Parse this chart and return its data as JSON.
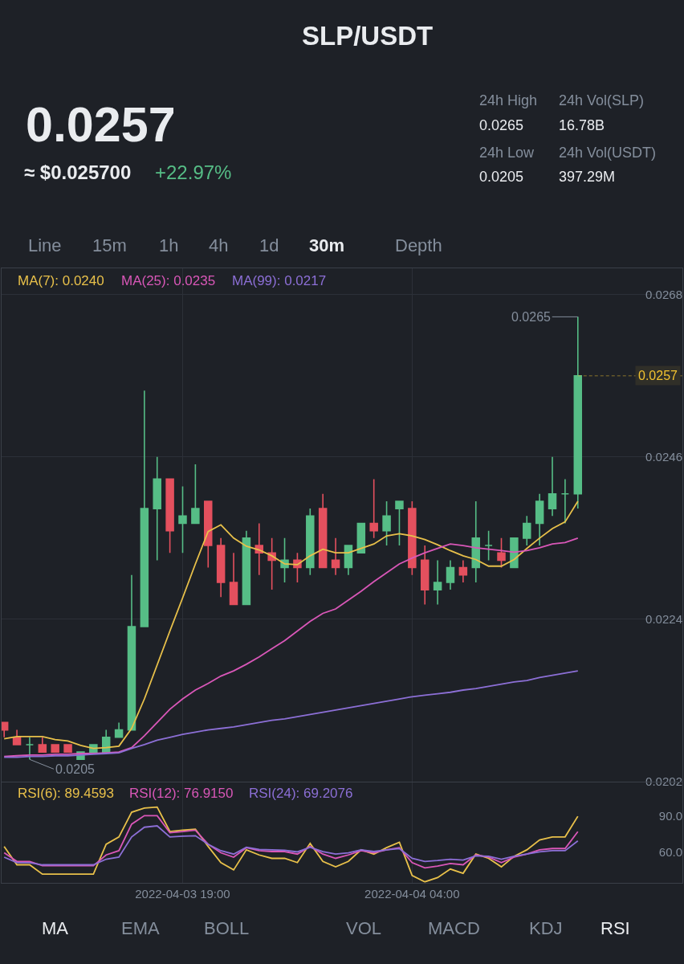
{
  "chart_data": [
    {
      "type": "other",
      "title": "SLP/USDT",
      "annotations": [
        "0.0257",
        "≈ $0.025700",
        "+22.97%",
        "24h High",
        "0.0265",
        "24h Low",
        "0.0205",
        "24h Vol(SLP)",
        "16.78B",
        "24h Vol(USDT)",
        "397.29M",
        "Line",
        "15m",
        "1h",
        "4h",
        "1d",
        "30m",
        "Depth"
      ]
    },
    {
      "type": "candlestick",
      "x": [
        "2022-04-03T12:00",
        "2022-04-03T12:30",
        "2022-04-03T13:00",
        "2022-04-03T13:30",
        "2022-04-03T14:00",
        "2022-04-03T14:30",
        "2022-04-03T15:00",
        "2022-04-03T15:30",
        "2022-04-03T16:00",
        "2022-04-03T16:30",
        "2022-04-03T17:00",
        "2022-04-03T17:30",
        "2022-04-03T18:00",
        "2022-04-03T18:30",
        "2022-04-03T19:00",
        "2022-04-03T19:30",
        "2022-04-03T20:00",
        "2022-04-03T20:30",
        "2022-04-03T21:00",
        "2022-04-03T21:30",
        "2022-04-03T22:00",
        "2022-04-03T22:30",
        "2022-04-03T23:00",
        "2022-04-03T23:30",
        "2022-04-04T00:00",
        "2022-04-04T00:30",
        "2022-04-04T01:00",
        "2022-04-04T01:30",
        "2022-04-04T02:00",
        "2022-04-04T02:30",
        "2022-04-04T03:00",
        "2022-04-04T03:30",
        "2022-04-04T04:00",
        "2022-04-04T04:30",
        "2022-04-04T05:00",
        "2022-04-04T05:30",
        "2022-04-04T06:00",
        "2022-04-04T06:30",
        "2022-04-04T07:00",
        "2022-04-04T07:30",
        "2022-04-04T08:00",
        "2022-04-04T08:30",
        "2022-04-04T09:00",
        "2022-04-04T09:30",
        "2022-04-04T10:00",
        "2022-04-04T10:30"
      ],
      "ohlc": [
        [
          0.021,
          0.021,
          0.0208,
          0.0209
        ],
        [
          0.0208,
          0.0209,
          0.0207,
          0.0207
        ],
        [
          0.0207,
          0.0208,
          0.0205,
          0.0207
        ],
        [
          0.0207,
          0.0208,
          0.0206,
          0.0206
        ],
        [
          0.0207,
          0.0207,
          0.0206,
          0.0206
        ],
        [
          0.0207,
          0.0207,
          0.0206,
          0.0206
        ],
        [
          0.0205,
          0.0206,
          0.0205,
          0.0206
        ],
        [
          0.0206,
          0.0207,
          0.0206,
          0.0207
        ],
        [
          0.0206,
          0.0209,
          0.0206,
          0.0208
        ],
        [
          0.0208,
          0.021,
          0.0208,
          0.0209
        ],
        [
          0.0209,
          0.023,
          0.0209,
          0.0223
        ],
        [
          0.0223,
          0.0255,
          0.0223,
          0.0239
        ],
        [
          0.0239,
          0.0246,
          0.0232,
          0.0243
        ],
        [
          0.0243,
          0.0243,
          0.0233,
          0.0236
        ],
        [
          0.0237,
          0.0242,
          0.0233,
          0.0238
        ],
        [
          0.0237,
          0.0245,
          0.0237,
          0.0239
        ],
        [
          0.024,
          0.024,
          0.0231,
          0.0234
        ],
        [
          0.0234,
          0.0235,
          0.0227,
          0.0229
        ],
        [
          0.0229,
          0.0233,
          0.0226,
          0.0226
        ],
        [
          0.0226,
          0.0236,
          0.0226,
          0.0235
        ],
        [
          0.0234,
          0.0237,
          0.023,
          0.0233
        ],
        [
          0.0233,
          0.0235,
          0.0228,
          0.0232
        ],
        [
          0.0231,
          0.0235,
          0.0229,
          0.0232
        ],
        [
          0.0232,
          0.0233,
          0.0229,
          0.0231
        ],
        [
          0.0231,
          0.0239,
          0.023,
          0.0238
        ],
        [
          0.0239,
          0.0241,
          0.0231,
          0.0231
        ],
        [
          0.0232,
          0.0235,
          0.023,
          0.0231
        ],
        [
          0.0231,
          0.0234,
          0.023,
          0.0234
        ],
        [
          0.0233,
          0.0237,
          0.0233,
          0.0237
        ],
        [
          0.0237,
          0.0243,
          0.0235,
          0.0236
        ],
        [
          0.0236,
          0.024,
          0.0234,
          0.0238
        ],
        [
          0.0239,
          0.024,
          0.0234,
          0.024
        ],
        [
          0.0239,
          0.024,
          0.023,
          0.0231
        ],
        [
          0.0232,
          0.0234,
          0.0226,
          0.0228
        ],
        [
          0.0228,
          0.0232,
          0.0226,
          0.0229
        ],
        [
          0.0229,
          0.0232,
          0.0228,
          0.0231
        ],
        [
          0.0231,
          0.0232,
          0.0229,
          0.023
        ],
        [
          0.0231,
          0.024,
          0.0229,
          0.0235
        ],
        [
          0.0234,
          0.0236,
          0.0232,
          0.0234
        ],
        [
          0.0233,
          0.0235,
          0.0231,
          0.0232
        ],
        [
          0.0231,
          0.0235,
          0.0231,
          0.0235
        ],
        [
          0.0235,
          0.0238,
          0.0234,
          0.0237
        ],
        [
          0.0237,
          0.0241,
          0.0234,
          0.024
        ],
        [
          0.0239,
          0.0246,
          0.0238,
          0.0241
        ],
        [
          0.0241,
          0.0243,
          0.0237,
          0.0241
        ],
        [
          0.0241,
          0.0265,
          0.0239,
          0.0257
        ]
      ],
      "colors": [
        "#e4505e",
        "#e4505e",
        "#56bd86",
        "#e4505e",
        "#e4505e",
        "#e4505e",
        "#56bd86",
        "#56bd86",
        "#56bd86",
        "#56bd86",
        "#56bd86",
        "#56bd86",
        "#56bd86",
        "#e4505e",
        "#56bd86",
        "#56bd86",
        "#e4505e",
        "#e4505e",
        "#e4505e",
        "#56bd86",
        "#e4505e",
        "#e4505e",
        "#56bd86",
        "#e4505e",
        "#56bd86",
        "#e4505e",
        "#e4505e",
        "#56bd86",
        "#56bd86",
        "#e4505e",
        "#56bd86",
        "#56bd86",
        "#e4505e",
        "#e4505e",
        "#56bd86",
        "#56bd86",
        "#e4505e",
        "#56bd86",
        "#56bd86",
        "#e4505e",
        "#56bd86",
        "#56bd86",
        "#56bd86",
        "#56bd86",
        "#56bd86",
        "#56bd86"
      ],
      "series": [
        {
          "type": "line",
          "name": "MA(7): 0.0240",
          "color": "#e8c04a",
          "values": [
            0.02078,
            0.02081,
            0.02081,
            0.02081,
            0.02077,
            0.02075,
            0.02069,
            0.02065,
            0.02066,
            0.02068,
            0.02092,
            0.02132,
            0.02178,
            0.02224,
            0.02269,
            0.02315,
            0.02359,
            0.02368,
            0.0235,
            0.02339,
            0.02334,
            0.02326,
            0.02315,
            0.02314,
            0.02326,
            0.02335,
            0.0233,
            0.0233,
            0.02336,
            0.02342,
            0.02353,
            0.02356,
            0.02353,
            0.02348,
            0.02341,
            0.02333,
            0.02326,
            0.02321,
            0.02312,
            0.02312,
            0.02321,
            0.02336,
            0.0235,
            0.02363,
            0.02372,
            0.024
          ]
        },
        {
          "type": "line",
          "name": "MA(25): 0.0235",
          "color": "#d957b8",
          "values": [
            0.02054,
            0.02055,
            0.02056,
            0.02056,
            0.02057,
            0.02057,
            0.02058,
            0.02058,
            0.02059,
            0.0206,
            0.02066,
            0.02082,
            0.021,
            0.02118,
            0.02132,
            0.02144,
            0.02153,
            0.02163,
            0.0217,
            0.02179,
            0.02189,
            0.022,
            0.02211,
            0.02224,
            0.02237,
            0.02248,
            0.02254,
            0.02266,
            0.02278,
            0.02291,
            0.02303,
            0.02315,
            0.02323,
            0.0233,
            0.02336,
            0.02342,
            0.0234,
            0.02337,
            0.02335,
            0.02333,
            0.02331,
            0.02333,
            0.02337,
            0.02342,
            0.02344,
            0.0235
          ]
        },
        {
          "type": "line",
          "name": "MA(99): 0.0217",
          "color": "#8c6fd6",
          "values": [
            0.02053,
            0.02053,
            0.02054,
            0.02054,
            0.02055,
            0.02055,
            0.02056,
            0.02057,
            0.02058,
            0.02059,
            0.02065,
            0.0207,
            0.02076,
            0.0208,
            0.02084,
            0.02087,
            0.0209,
            0.02092,
            0.02094,
            0.02097,
            0.021,
            0.02103,
            0.02105,
            0.02108,
            0.02111,
            0.02114,
            0.02117,
            0.0212,
            0.02123,
            0.02126,
            0.02129,
            0.02132,
            0.02135,
            0.02137,
            0.02139,
            0.02141,
            0.02144,
            0.02146,
            0.02149,
            0.02152,
            0.02155,
            0.02157,
            0.02161,
            0.02164,
            0.02167,
            0.0217
          ]
        }
      ],
      "xlim": [
        "2022-04-03T11:54",
        "2022-04-04T14:36"
      ],
      "ylim": [
        0.0202,
        0.02716
      ],
      "xticks": [
        {
          "value": "2022-04-03T19:00",
          "label": null
        },
        {
          "value": "2022-04-04T04:00",
          "label": null
        }
      ],
      "yticks": [
        0.0202,
        0.0224,
        0.0246,
        0.0268
      ],
      "tick_labels": "y",
      "grid": true,
      "legend": "top left",
      "ref_lines": [
        {
          "axis": "y",
          "value": 0.0257,
          "label": "0.0257",
          "color": "#f2c230",
          "line_style": "dashed"
        }
      ],
      "annotations": [
        {
          "text": "0.0265",
          "x": "2022-04-04T10:30",
          "y": 0.0265
        },
        {
          "text": "0.0205",
          "x": "2022-04-03T13:00",
          "y": 0.0205
        }
      ]
    },
    {
      "type": "line",
      "x": [
        "2022-04-03T12:00",
        "2022-04-03T12:30",
        "2022-04-03T13:00",
        "2022-04-03T13:30",
        "2022-04-03T14:00",
        "2022-04-03T14:30",
        "2022-04-03T15:00",
        "2022-04-03T15:30",
        "2022-04-03T16:00",
        "2022-04-03T16:30",
        "2022-04-03T17:00",
        "2022-04-03T17:30",
        "2022-04-03T18:00",
        "2022-04-03T18:30",
        "2022-04-03T19:00",
        "2022-04-03T19:30",
        "2022-04-03T20:00",
        "2022-04-03T20:30",
        "2022-04-03T21:00",
        "2022-04-03T21:30",
        "2022-04-03T22:00",
        "2022-04-03T22:30",
        "2022-04-03T23:00",
        "2022-04-03T23:30",
        "2022-04-04T00:00",
        "2022-04-04T00:30",
        "2022-04-04T01:00",
        "2022-04-04T01:30",
        "2022-04-04T02:00",
        "2022-04-04T02:30",
        "2022-04-04T03:00",
        "2022-04-04T03:30",
        "2022-04-04T04:00",
        "2022-04-04T04:30",
        "2022-04-04T05:00",
        "2022-04-04T05:30",
        "2022-04-04T06:00",
        "2022-04-04T06:30",
        "2022-04-04T07:00",
        "2022-04-04T07:30",
        "2022-04-04T08:00",
        "2022-04-04T08:30",
        "2022-04-04T09:00",
        "2022-04-04T09:30",
        "2022-04-04T10:00",
        "2022-04-04T10:30"
      ],
      "series": [
        {
          "name": "RSI(6): 89.4593",
          "color": "#e8c04a",
          "values": [
            64.7,
            49.6,
            49.6,
            41.9,
            41.9,
            41.9,
            41.9,
            41.9,
            66.5,
            72.5,
            92.8,
            96.3,
            97.1,
            77.0,
            78.1,
            78.8,
            64.7,
            51.4,
            45.4,
            61.9,
            57.7,
            54.9,
            54.9,
            51.4,
            67.2,
            52.4,
            47.9,
            52.4,
            61.9,
            58.4,
            63.7,
            68.2,
            40.8,
            35.6,
            39.1,
            46.1,
            42.6,
            58.4,
            54.9,
            47.9,
            56.6,
            61.9,
            70.0,
            72.5,
            72.5,
            89.5
          ]
        },
        {
          "name": "RSI(12): 76.9150",
          "color": "#d957b8",
          "values": [
            59.5,
            52.4,
            52.4,
            48.9,
            48.9,
            48.9,
            48.9,
            48.9,
            57.7,
            61.2,
            83.0,
            90.0,
            90.0,
            76.0,
            77.0,
            78.1,
            66.5,
            59.5,
            55.9,
            63.7,
            61.2,
            60.5,
            60.5,
            58.4,
            64.7,
            58.4,
            54.9,
            57.7,
            61.2,
            59.5,
            61.9,
            63.7,
            51.4,
            47.1,
            48.6,
            50.7,
            49.6,
            57.7,
            55.9,
            51.4,
            55.9,
            58.4,
            61.9,
            63.0,
            63.0,
            76.9
          ]
        },
        {
          "name": "RSI(24): 69.2076",
          "color": "#8c6fd6",
          "values": [
            55.9,
            51.4,
            51.4,
            49.6,
            49.6,
            49.6,
            49.6,
            49.6,
            54.2,
            55.9,
            72.5,
            80.5,
            81.6,
            72.5,
            73.2,
            73.5,
            66.5,
            61.2,
            58.4,
            64.0,
            62.3,
            61.9,
            61.6,
            60.2,
            64.0,
            60.5,
            58.4,
            59.5,
            61.9,
            60.5,
            61.9,
            63.0,
            54.9,
            52.4,
            53.1,
            54.2,
            53.5,
            57.0,
            56.6,
            54.2,
            56.6,
            58.4,
            60.2,
            61.2,
            61.2,
            69.2
          ]
        }
      ],
      "xlim": [
        "2022-04-03T11:54",
        "2022-04-04T14:36"
      ],
      "ylim": [
        35,
        117
      ],
      "xticks": [
        {
          "value": "2022-04-03T19:00",
          "label": "2022-04-03 19:00"
        },
        {
          "value": "2022-04-04T04:00",
          "label": "2022-04-04 04:00"
        }
      ],
      "yticks": [
        {
          "value": 90,
          "label": "90.0"
        },
        {
          "value": 60,
          "label": "60.0"
        }
      ],
      "grid": "x",
      "legend": "top left"
    },
    {
      "type": "other",
      "annotations": [
        "MA",
        "EMA",
        "BOLL",
        "VOL",
        "MACD",
        "KDJ",
        "RSI"
      ]
    }
  ]
}
